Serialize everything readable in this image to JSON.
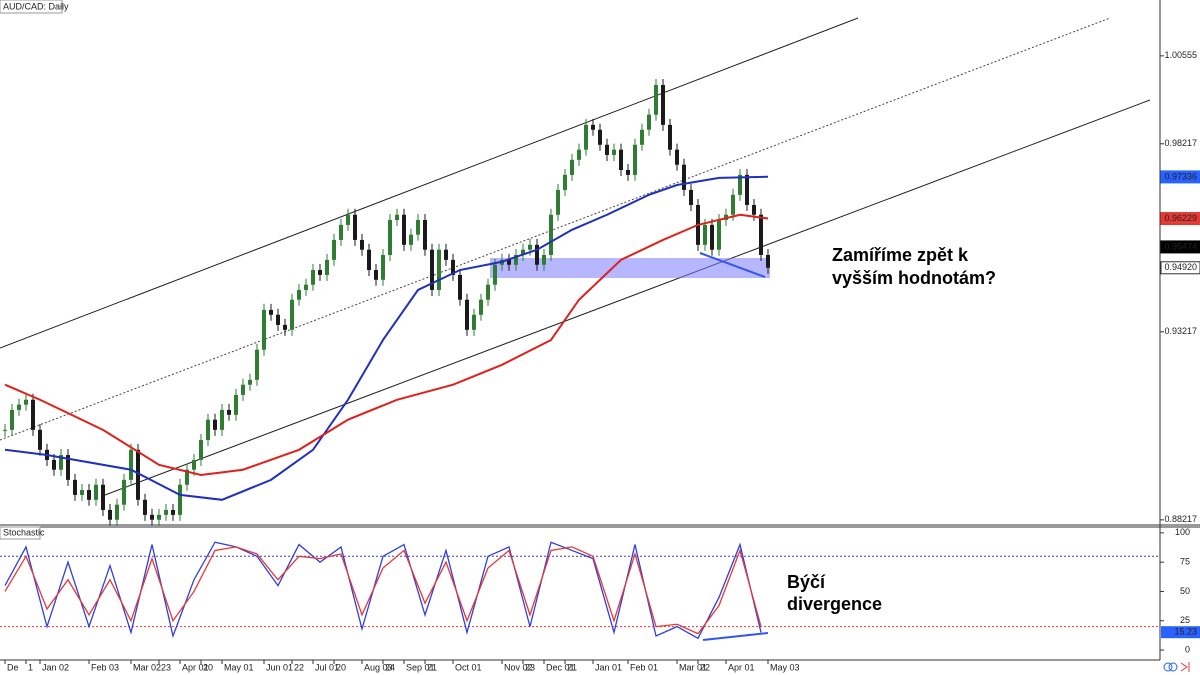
{
  "chart_data": [
    {
      "type": "candlestick",
      "title": "AUD/CAD: Daily",
      "categories": [
        "De",
        null,
        null,
        "1",
        null,
        "Jan 02",
        null,
        null,
        null,
        null,
        null,
        null,
        "Feb 03",
        null,
        null,
        null,
        null,
        null,
        "Mar 02",
        null,
        null,
        null,
        "23",
        null,
        null,
        "Apr 01",
        null,
        null,
        "20",
        null,
        null,
        "May 01",
        null,
        null,
        null,
        null,
        null,
        "Jun 01",
        null,
        null,
        null,
        "22",
        null,
        null,
        "Jul 01",
        null,
        null,
        "20",
        null,
        null,
        null,
        "Aug 03",
        null,
        null,
        "24",
        null,
        null,
        "Sep 01",
        null,
        null,
        "21",
        null,
        null,
        null,
        "Oct 01",
        null,
        null,
        null,
        null,
        null,
        null,
        "Nov 02",
        null,
        null,
        "23",
        null,
        null,
        "Dec 01",
        null,
        null,
        "21",
        null,
        null,
        null,
        "Jan 01",
        null,
        null,
        null,
        null,
        "Feb 01",
        null,
        null,
        null,
        null,
        null,
        null,
        "Mar 01",
        null,
        null,
        "22",
        null,
        null,
        null,
        "Apr 01",
        null,
        null,
        null,
        null,
        null,
        "May 03"
      ],
      "values": [
        0.9061,
        0.9114,
        0.9128,
        0.9141,
        0.9061,
        0.9008,
        0.8981,
        0.8955,
        0.8994,
        0.8928,
        0.8888,
        0.8901,
        0.8875,
        0.8915,
        0.8848,
        0.8822,
        0.8862,
        0.8928,
        0.9008,
        0.8875,
        0.8835,
        0.8822,
        0.8835,
        0.8848,
        0.8835,
        0.8915,
        0.8955,
        0.8981,
        0.9034,
        0.9088,
        0.9061,
        0.9114,
        0.9101,
        0.9154,
        0.9181,
        0.9194,
        0.9274,
        0.938,
        0.9367,
        0.934,
        0.9327,
        0.9407,
        0.9433,
        0.9447,
        0.9486,
        0.9473,
        0.9513,
        0.9566,
        0.9606,
        0.9633,
        0.9566,
        0.954,
        0.9486,
        0.946,
        0.9526,
        0.9619,
        0.9633,
        0.9553,
        0.958,
        0.9619,
        0.954,
        0.9433,
        0.954,
        0.9513,
        0.9473,
        0.9407,
        0.9327,
        0.9367,
        0.9407,
        0.9447,
        0.95,
        0.9513,
        0.95,
        0.9526,
        0.954,
        0.9553,
        0.95,
        0.9526,
        0.9633,
        0.9699,
        0.9739,
        0.9779,
        0.9806,
        0.9872,
        0.9859,
        0.9819,
        0.9792,
        0.9806,
        0.9752,
        0.9739,
        0.9819,
        0.9859,
        0.9899,
        0.9978,
        0.9872,
        0.9806,
        0.9766,
        0.9699,
        0.9659,
        0.9553,
        0.9606,
        0.954,
        0.9619,
        0.9633,
        0.9686,
        0.9739,
        0.9659,
        0.9633,
        0.9526,
        0.9492
      ],
      "up_color": "#2e7d32",
      "down_color": "#1a1a1a",
      "overlays": [
        {
          "color": "#1f2fbf",
          "x": [
            0,
            6,
            18,
            25,
            31,
            38,
            44,
            49,
            54,
            59,
            65,
            71,
            76,
            81,
            86,
            92,
            96,
            102,
            109
          ],
          "values": [
            0.9008,
            0.8994,
            0.8955,
            0.8888,
            0.8875,
            0.8928,
            0.9008,
            0.9141,
            0.93,
            0.9433,
            0.9486,
            0.9508,
            0.954,
            0.9593,
            0.9633,
            0.9686,
            0.9712,
            0.9731,
            0.9734
          ]
        },
        {
          "color": "#e0201b",
          "x": [
            0,
            5,
            14,
            22,
            28,
            34,
            42,
            49,
            56,
            64,
            71,
            78,
            82,
            88,
            94,
            99,
            105,
            109
          ],
          "values": [
            0.9181,
            0.9141,
            0.9061,
            0.8968,
            0.8941,
            0.8955,
            0.9008,
            0.9088,
            0.9141,
            0.9181,
            0.9234,
            0.93,
            0.9407,
            0.9513,
            0.9566,
            0.9606,
            0.9633,
            0.9623
          ]
        }
      ],
      "ylim": [
        0.8808,
        1.0204
      ],
      "yticks": [
        1.00555,
        0.98217,
        0.93217,
        0.88217
      ],
      "price_markers": [
        {
          "value": 0.97336,
          "color": "#2962ff"
        },
        {
          "value": 0.96229,
          "color": "#e53935"
        },
        {
          "value": 0.95474,
          "color": "#000000"
        },
        {
          "value": {
            "value": 0.9492,
            "label": "0.94920"
          },
          "color": "#ffffff"
        }
      ],
      "annotation": [
        "Zamíříme zpět k",
        "vyšším hodnotám?"
      ]
    },
    {
      "type": "line",
      "title": "Stochastic",
      "x": [
        0,
        3,
        6,
        9,
        12,
        15,
        18,
        21,
        24,
        27,
        30,
        33,
        36,
        39,
        42,
        45,
        48,
        51,
        54,
        57,
        60,
        63,
        66,
        69,
        72,
        75,
        78,
        81,
        84,
        87,
        90,
        93,
        96,
        99,
        102,
        105,
        108
      ],
      "series": [
        {
          "color": "#2f3fe0",
          "values": [
            55,
            88,
            20,
            75,
            20,
            72,
            15,
            90,
            12,
            60,
            92,
            88,
            80,
            55,
            90,
            75,
            88,
            18,
            80,
            90,
            30,
            85,
            15,
            80,
            88,
            20,
            92,
            85,
            78,
            15,
            90,
            12,
            20,
            10,
            45,
            90,
            15
          ]
        },
        {
          "color": "#e53935",
          "values": [
            50,
            80,
            35,
            60,
            30,
            60,
            25,
            78,
            25,
            50,
            85,
            88,
            82,
            60,
            80,
            78,
            82,
            30,
            70,
            85,
            40,
            75,
            25,
            70,
            85,
            30,
            85,
            88,
            80,
            25,
            82,
            20,
            22,
            14,
            38,
            85,
            20
          ]
        }
      ],
      "ylim": [
        -8.5,
        105
      ],
      "yticks": [
        100,
        75,
        50,
        25,
        0
      ],
      "levels": [
        {
          "value": 80,
          "color": "#3b3bd6"
        },
        {
          "value": 20,
          "color": "#e53935"
        }
      ],
      "marker": {
        "value": 15.23,
        "color": "#2962ff"
      },
      "annotation": [
        "Býčí",
        "divergence"
      ]
    }
  ]
}
